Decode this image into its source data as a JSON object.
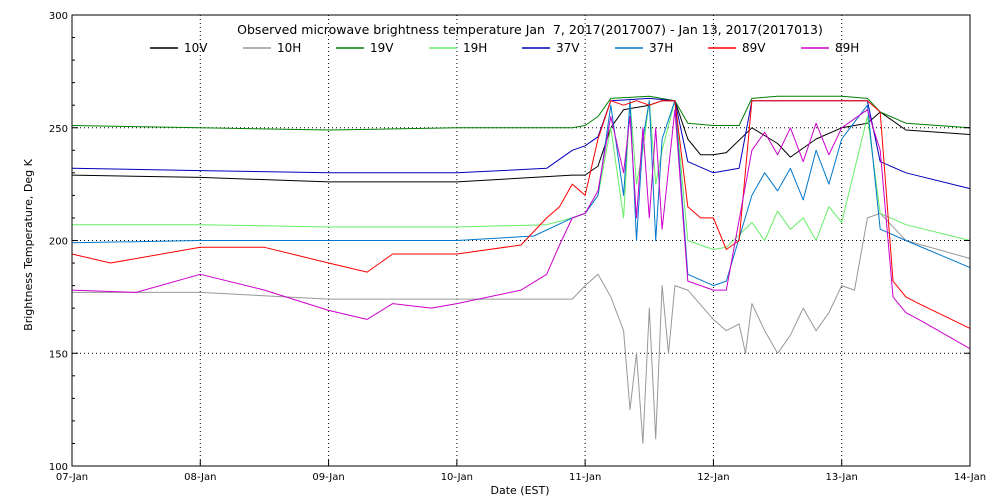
{
  "chart_data": {
    "type": "line",
    "title": "Observed microwave brightness temperature Jan  7, 2017(2017007) - Jan 13, 2017(2017013)",
    "xlabel": "Date (EST)",
    "ylabel": "Brightness Temperature, Deg K",
    "xlim": [
      0,
      7
    ],
    "ylim": [
      100,
      300
    ],
    "x_tick_values": [
      0,
      1,
      2,
      3,
      4,
      5,
      6,
      7
    ],
    "x_tick_labels": [
      "07-Jan",
      "08-Jan",
      "09-Jan",
      "10-Jan",
      "11-Jan",
      "12-Jan",
      "13-Jan",
      "14-Jan"
    ],
    "y_tick_values": [
      100,
      150,
      200,
      250,
      300
    ],
    "y_tick_labels": [
      "100",
      "150",
      "200",
      "250",
      "300"
    ],
    "grid": "dotted",
    "legend_position": "top",
    "series": [
      {
        "name": "10V",
        "color": "#000000",
        "x": [
          0,
          1,
          2,
          3,
          3.6,
          3.9,
          4,
          4.1,
          4.2,
          4.3,
          4.5,
          4.6,
          4.7,
          4.8,
          4.9,
          5,
          5.1,
          5.3,
          5.5,
          5.6,
          5.8,
          6,
          6.2,
          6.3,
          6.5,
          7
        ],
        "y": [
          229,
          228,
          226,
          226,
          228,
          229,
          229,
          233,
          250,
          258,
          260,
          262,
          262,
          245,
          238,
          238,
          239,
          250,
          243,
          237,
          245,
          250,
          252,
          257,
          249,
          247
        ]
      },
      {
        "name": "10H",
        "color": "#999999",
        "x": [
          0,
          1,
          2,
          3,
          3.5,
          3.9,
          4,
          4.1,
          4.2,
          4.3,
          4.35,
          4.4,
          4.45,
          4.5,
          4.55,
          4.6,
          4.65,
          4.7,
          4.8,
          5,
          5.1,
          5.2,
          5.25,
          5.3,
          5.4,
          5.5,
          5.6,
          5.7,
          5.8,
          5.9,
          6,
          6.1,
          6.2,
          6.3,
          6.5,
          7
        ],
        "y": [
          177,
          177,
          174,
          174,
          174,
          174,
          180,
          185,
          175,
          160,
          125,
          150,
          110,
          170,
          112,
          180,
          150,
          180,
          178,
          165,
          160,
          163,
          150,
          172,
          160,
          150,
          158,
          170,
          160,
          168,
          180,
          178,
          210,
          212,
          200,
          192
        ]
      },
      {
        "name": "19V",
        "color": "#008000",
        "x": [
          0,
          1,
          2,
          3,
          3.5,
          3.9,
          4,
          4.1,
          4.2,
          4.5,
          4.7,
          4.8,
          5,
          5.2,
          5.3,
          5.5,
          6,
          6.2,
          6.3,
          6.5,
          7
        ],
        "y": [
          251,
          250,
          249,
          250,
          250,
          250,
          251,
          255,
          263,
          264,
          262,
          252,
          251,
          251,
          263,
          264,
          264,
          263,
          257,
          252,
          250
        ]
      },
      {
        "name": "19H",
        "color": "#66ee66",
        "x": [
          0,
          1,
          2,
          3,
          3.7,
          3.9,
          4,
          4.1,
          4.2,
          4.3,
          4.35,
          4.4,
          4.45,
          4.5,
          4.55,
          4.6,
          4.7,
          4.8,
          5,
          5.1,
          5.3,
          5.4,
          5.5,
          5.6,
          5.7,
          5.8,
          5.9,
          6,
          6.2,
          6.3,
          6.5,
          7
        ],
        "y": [
          207,
          207,
          206,
          206,
          207,
          210,
          212,
          220,
          250,
          210,
          262,
          225,
          240,
          262,
          225,
          240,
          262,
          200,
          196,
          197,
          208,
          200,
          213,
          205,
          210,
          200,
          215,
          208,
          255,
          212,
          207,
          200
        ]
      },
      {
        "name": "37V",
        "color": "#0000bb",
        "x": [
          0,
          1,
          2,
          3,
          3.7,
          3.9,
          4,
          4.1,
          4.2,
          4.5,
          4.7,
          4.8,
          5,
          5.2,
          5.3,
          5.5,
          6,
          6.2,
          6.3,
          6.5,
          7
        ],
        "y": [
          232,
          231,
          230,
          230,
          232,
          240,
          242,
          246,
          262,
          263,
          262,
          235,
          230,
          232,
          262,
          262,
          262,
          262,
          235,
          230,
          223
        ]
      },
      {
        "name": "37H",
        "color": "#0077cc",
        "x": [
          0,
          1,
          2,
          3,
          3.6,
          3.9,
          4,
          4.1,
          4.2,
          4.3,
          4.35,
          4.4,
          4.45,
          4.5,
          4.55,
          4.6,
          4.7,
          4.8,
          5,
          5.1,
          5.3,
          5.4,
          5.5,
          5.6,
          5.7,
          5.8,
          5.9,
          6,
          6.2,
          6.3,
          6.5,
          7
        ],
        "y": [
          199,
          200,
          200,
          200,
          202,
          210,
          212,
          220,
          260,
          220,
          262,
          200,
          245,
          262,
          200,
          245,
          262,
          185,
          180,
          182,
          220,
          230,
          222,
          232,
          218,
          240,
          225,
          245,
          260,
          205,
          200,
          188
        ]
      },
      {
        "name": "89V",
        "color": "#ff0000",
        "x": [
          0,
          0.3,
          1,
          1.5,
          2,
          2.3,
          2.5,
          3,
          3.5,
          3.7,
          3.8,
          3.9,
          4,
          4.1,
          4.2,
          4.3,
          4.4,
          4.5,
          4.6,
          4.7,
          4.8,
          4.9,
          5,
          5.1,
          5.2,
          5.3,
          5.5,
          6,
          6.2,
          6.3,
          6.4,
          6.5,
          6.6,
          7
        ],
        "y": [
          194,
          190,
          197,
          197,
          190,
          186,
          194,
          194,
          198,
          210,
          215,
          225,
          220,
          245,
          262,
          260,
          262,
          260,
          262,
          262,
          215,
          210,
          210,
          196,
          200,
          262,
          262,
          262,
          262,
          257,
          182,
          175,
          172,
          161
        ]
      },
      {
        "name": "89H",
        "color": "#cc00cc",
        "x": [
          0,
          0.5,
          1,
          1.5,
          2,
          2.3,
          2.5,
          2.8,
          3,
          3.5,
          3.7,
          3.8,
          3.9,
          4,
          4.1,
          4.2,
          4.3,
          4.35,
          4.4,
          4.45,
          4.5,
          4.55,
          4.6,
          4.7,
          4.8,
          5,
          5.1,
          5.3,
          5.4,
          5.5,
          5.6,
          5.7,
          5.8,
          5.9,
          6,
          6.2,
          6.3,
          6.4,
          6.5,
          6.6,
          7
        ],
        "y": [
          178,
          177,
          185,
          178,
          169,
          165,
          172,
          170,
          172,
          178,
          185,
          198,
          210,
          212,
          222,
          255,
          230,
          255,
          210,
          250,
          210,
          250,
          205,
          258,
          182,
          178,
          178,
          240,
          248,
          238,
          250,
          235,
          252,
          238,
          250,
          258,
          240,
          175,
          168,
          165,
          152
        ]
      }
    ]
  }
}
